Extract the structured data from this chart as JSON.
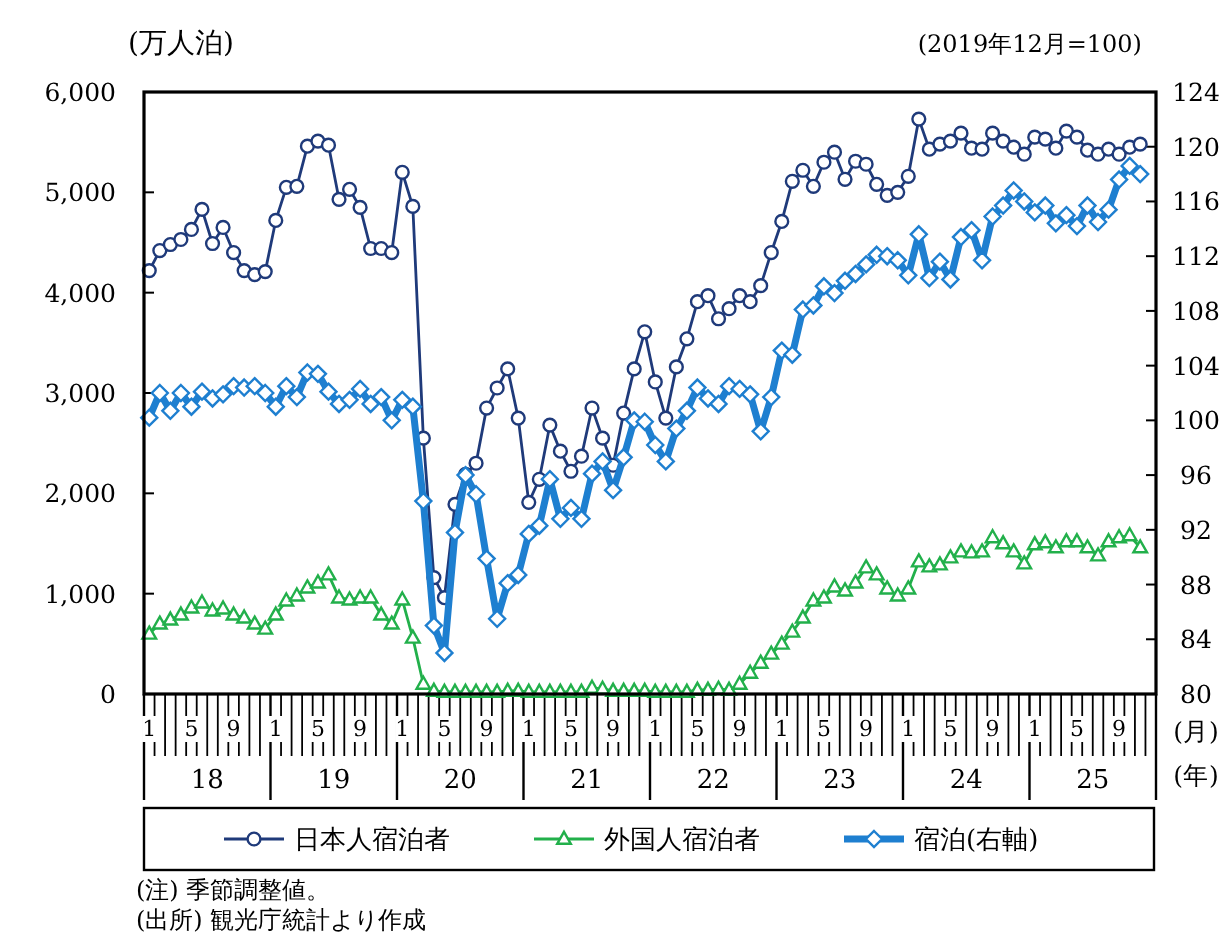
{
  "chart_data": {
    "type": "line",
    "ylabel": "(万人泊)",
    "y2label": "(2019年12月=100)",
    "xlabel": "(月)",
    "categories": [
      "1",
      null,
      null,
      null,
      "5",
      null,
      null,
      null,
      "9",
      null,
      null,
      null,
      "1",
      null,
      null,
      null,
      "5",
      null,
      null,
      null,
      "9",
      null,
      null,
      null,
      "1",
      null,
      null,
      null,
      "5",
      null,
      null,
      null,
      "9",
      null,
      null,
      null,
      "1",
      null,
      null,
      null,
      "5",
      null,
      null,
      null,
      "9",
      null,
      null,
      null,
      "1",
      null,
      null,
      null,
      "5",
      null,
      null,
      null,
      "9",
      null,
      null,
      null,
      "1",
      null,
      null,
      null,
      "5",
      null,
      null,
      null,
      "9",
      null,
      null,
      null,
      "1",
      null,
      null,
      null,
      "5",
      null,
      null,
      null,
      "9",
      null,
      null,
      null,
      "1",
      null,
      null,
      null,
      "5",
      null,
      null,
      null,
      "9",
      null,
      null,
      null
    ],
    "ylim": [
      0,
      6000
    ],
    "yticks": [
      0,
      {
        "value": 1000,
        "label": "1,000"
      },
      {
        "value": 2000,
        "label": "2,000"
      },
      {
        "value": 3000,
        "label": "3,000"
      },
      {
        "value": 4000,
        "label": "4,000"
      },
      {
        "value": 5000,
        "label": "5,000"
      },
      {
        "value": 6000,
        "label": "6,000"
      }
    ],
    "y2lim": [
      80,
      124
    ],
    "y2ticks": [
      80,
      84,
      88,
      92,
      96,
      100,
      104,
      108,
      112,
      116,
      120,
      124
    ],
    "legend": "bottom",
    "series": [
      {
        "name": "日本人宿泊者",
        "color": "#1f3a7a",
        "marker": "circle",
        "values": [
          4220,
          4420,
          4480,
          4530,
          4630,
          4830,
          4490,
          4650,
          4400,
          4220,
          4180,
          4210,
          4720,
          5050,
          5060,
          5460,
          5510,
          5470,
          4930,
          5030,
          4850,
          4440,
          4440,
          4400,
          5200,
          4860,
          2550,
          1160,
          960,
          1890,
          2190,
          2300,
          2850,
          3050,
          3240,
          2750,
          1910,
          2140,
          2680,
          2420,
          2220,
          2370,
          2850,
          2550,
          2280,
          2800,
          3240,
          3610,
          3110,
          2750,
          3260,
          3540,
          3910,
          3970,
          3740,
          3840,
          3970,
          3910,
          4070,
          4400,
          4710,
          5110,
          5220,
          5060,
          5300,
          5400,
          5130,
          5310,
          5280,
          5080,
          4970,
          5000,
          5160,
          5730,
          5430,
          5480,
          5510,
          5590,
          5440,
          5430,
          5590,
          5510,
          5450,
          5380,
          5550,
          5530,
          5440,
          5610,
          5550,
          5420,
          5380,
          5430,
          5380,
          5450,
          5480,
          null
        ]
      },
      {
        "name": "外国人宿泊者",
        "color": "#22b04b",
        "marker": "triangle",
        "values": [
          600,
          700,
          740,
          790,
          860,
          910,
          830,
          850,
          790,
          760,
          700,
          650,
          790,
          930,
          980,
          1060,
          1110,
          1190,
          960,
          940,
          960,
          960,
          790,
          700,
          940,
          560,
          100,
          30,
          20,
          20,
          20,
          20,
          20,
          20,
          30,
          30,
          20,
          20,
          20,
          20,
          20,
          20,
          60,
          50,
          30,
          30,
          30,
          30,
          20,
          20,
          20,
          20,
          40,
          40,
          50,
          40,
          100,
          210,
          310,
          400,
          500,
          620,
          760,
          930,
          960,
          1070,
          1030,
          1110,
          1260,
          1190,
          1050,
          980,
          1050,
          1320,
          1270,
          1290,
          1360,
          1420,
          1410,
          1420,
          1560,
          1500,
          1420,
          1300,
          1490,
          1510,
          1460,
          1520,
          1520,
          1460,
          1380,
          1520,
          1560,
          1580,
          1460,
          null
        ]
      },
      {
        "name": "宿泊(右軸)",
        "color": "#1e7fd0",
        "marker": "diamond",
        "axis": "y2",
        "values": [
          100.2,
          102.0,
          100.7,
          102.0,
          101.0,
          102.1,
          101.6,
          101.9,
          102.5,
          102.4,
          102.5,
          102.0,
          101.0,
          102.5,
          101.7,
          103.5,
          103.4,
          102.1,
          101.2,
          101.5,
          102.3,
          101.2,
          101.7,
          100.0,
          101.5,
          101.0,
          94.1,
          85.0,
          83.0,
          91.8,
          96.0,
          94.6,
          89.9,
          85.5,
          88.1,
          88.7,
          91.7,
          92.3,
          95.7,
          92.8,
          93.6,
          92.8,
          96.1,
          97.0,
          94.9,
          97.3,
          100.0,
          99.9,
          98.2,
          97.0,
          99.4,
          100.7,
          102.4,
          101.6,
          101.2,
          102.5,
          102.3,
          101.9,
          99.2,
          101.7,
          105.1,
          104.8,
          108.1,
          108.4,
          109.8,
          109.3,
          110.2,
          110.7,
          111.4,
          112.1,
          112.0,
          111.7,
          110.6,
          113.6,
          110.4,
          111.6,
          110.3,
          113.4,
          113.9,
          111.7,
          114.9,
          115.7,
          116.8,
          116.0,
          115.2,
          115.7,
          114.4,
          115.0,
          114.2,
          115.7,
          114.5,
          115.4,
          117.6,
          118.6,
          118.0,
          null
        ]
      }
    ],
    "annotations": [
      "18",
      "19",
      "20",
      "21",
      "22",
      "23",
      "24",
      "25",
      "(年)",
      "(注) 季節調整値。",
      "(出所) 観光庁統計より作成"
    ]
  }
}
